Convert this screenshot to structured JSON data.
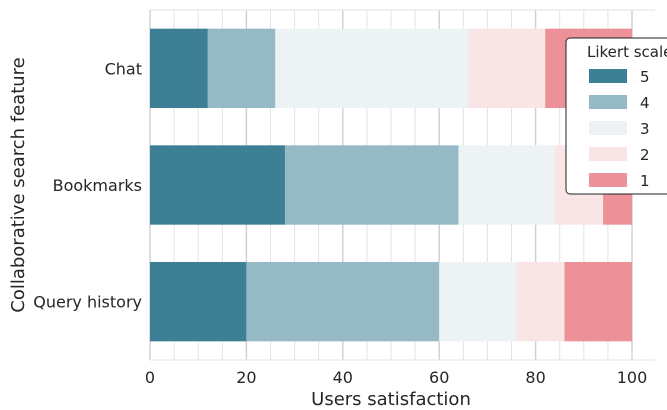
{
  "chart_data": {
    "type": "bar",
    "orientation": "horizontal",
    "stacked": true,
    "xlabel": "Users satisfaction",
    "ylabel": "Collaborative search feature",
    "xlim": [
      0,
      100
    ],
    "xticks": [
      "0",
      "20",
      "40",
      "60",
      "80",
      "100"
    ],
    "grid": true,
    "categories": [
      "Chat",
      "Bookmarks",
      "Query history"
    ],
    "series": [
      {
        "name": "5",
        "color": "#3d7f94",
        "values": [
          12,
          28,
          20
        ]
      },
      {
        "name": "4",
        "color": "#96b9c6",
        "values": [
          14,
          36,
          40
        ]
      },
      {
        "name": "3",
        "color": "#edf3f5",
        "values": [
          40,
          20,
          16
        ]
      },
      {
        "name": "2",
        "color": "#f9e4e6",
        "values": [
          16,
          10,
          10
        ]
      },
      {
        "name": "1",
        "color": "#eb9197",
        "values": [
          18,
          6,
          14
        ]
      }
    ],
    "legend": {
      "title": "Likert scale",
      "placement": "right",
      "entries": [
        "5",
        "4",
        "3",
        "2",
        "1"
      ]
    }
  }
}
